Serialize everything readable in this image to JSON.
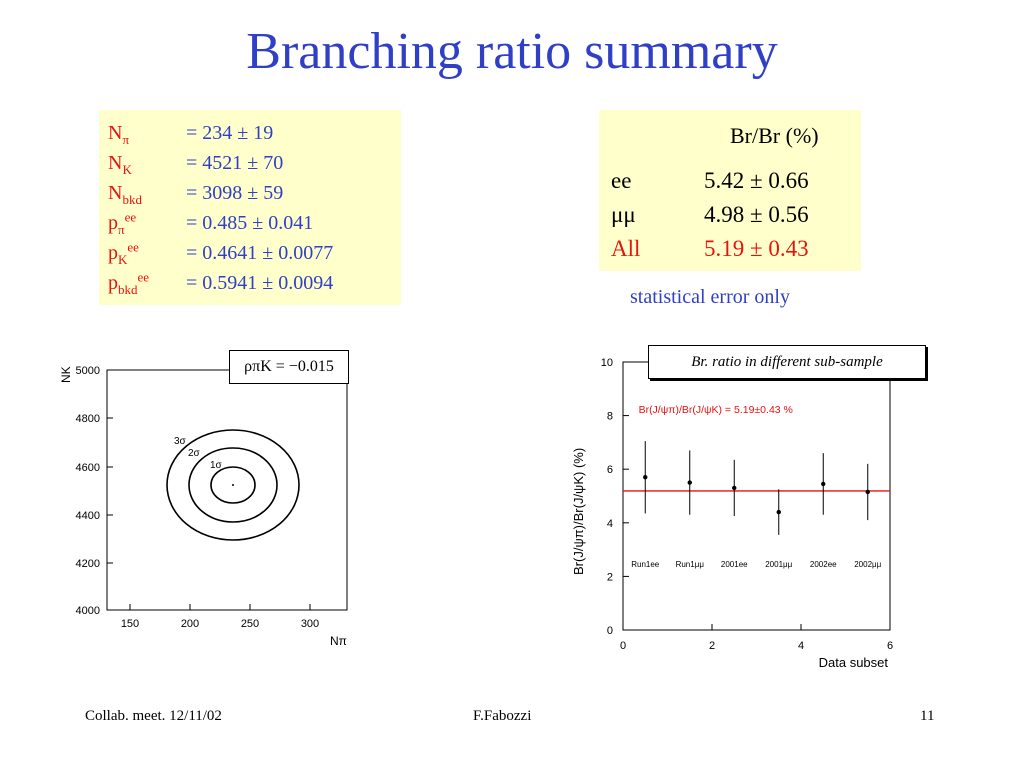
{
  "slide_title": "Branching ratio summary",
  "yields": {
    "rows": [
      {
        "label": "N",
        "sub": "π",
        "sup": "",
        "value": "=    234 ± 19"
      },
      {
        "label": "N",
        "sub": "K",
        "sup": "",
        "value": "=  4521 ± 70"
      },
      {
        "label": "N",
        "sub": "bkd",
        "sup": "",
        "value": "=  3098 ± 59"
      },
      {
        "label": "p",
        "sub": "π",
        "sup": "ee",
        "value": "=  0.485 ± 0.041"
      },
      {
        "label": "p",
        "sub": "K",
        "sup": "ee",
        "value": "=  0.4641 ± 0.0077"
      },
      {
        "label": "p",
        "sub": "bkd",
        "sup": "ee",
        "value": "=  0.5941  ± 0.0094"
      }
    ]
  },
  "br_table": {
    "header": "Br/Br (%)",
    "rows": [
      {
        "name": "ee",
        "value": "5.42 ± 0.66",
        "color": "#000000"
      },
      {
        "name": "μμ",
        "value": "4.98 ± 0.56",
        "color": "#000000"
      },
      {
        "name": "All",
        "value": "5.19 ± 0.43",
        "color": "#e8120f"
      }
    ],
    "note": "statistical error only"
  },
  "contour_plot": {
    "correlation_label": "ρπK = −0.015",
    "y_axis_label": "NK",
    "x_axis_label": "Nπ",
    "contour_labels": [
      "3σ",
      "2σ",
      "1σ"
    ]
  },
  "chart_data": {
    "type": "scatter",
    "title": "Br. ratio in different sub-sample",
    "annotation": "Br(J/ψπ)/Br(J/ψK) = 5.19±0.43 %",
    "xlabel": "Data subset",
    "ylabel": "Br(J/ψπ)/Br(J/ψK) (%)",
    "xlim": [
      0,
      6
    ],
    "ylim": [
      0,
      10
    ],
    "x_ticks": [
      0,
      2,
      4,
      6
    ],
    "y_ticks": [
      0,
      2,
      4,
      6,
      8,
      10
    ],
    "categories": [
      "Run1ee",
      "Run1μμ",
      "2001ee",
      "2001μμ",
      "2002ee",
      "2002μμ"
    ],
    "x": [
      0.5,
      1.5,
      2.5,
      3.5,
      4.5,
      5.5
    ],
    "y": [
      5.7,
      5.5,
      5.3,
      4.4,
      5.45,
      5.15
    ],
    "yerr": [
      1.35,
      1.2,
      1.05,
      0.85,
      1.15,
      1.05
    ],
    "average": 5.19,
    "average_color": "#e8120f"
  },
  "footer": {
    "left": "Collab. meet. 12/11/02",
    "center": "F.Fabozzi",
    "right": "11"
  }
}
